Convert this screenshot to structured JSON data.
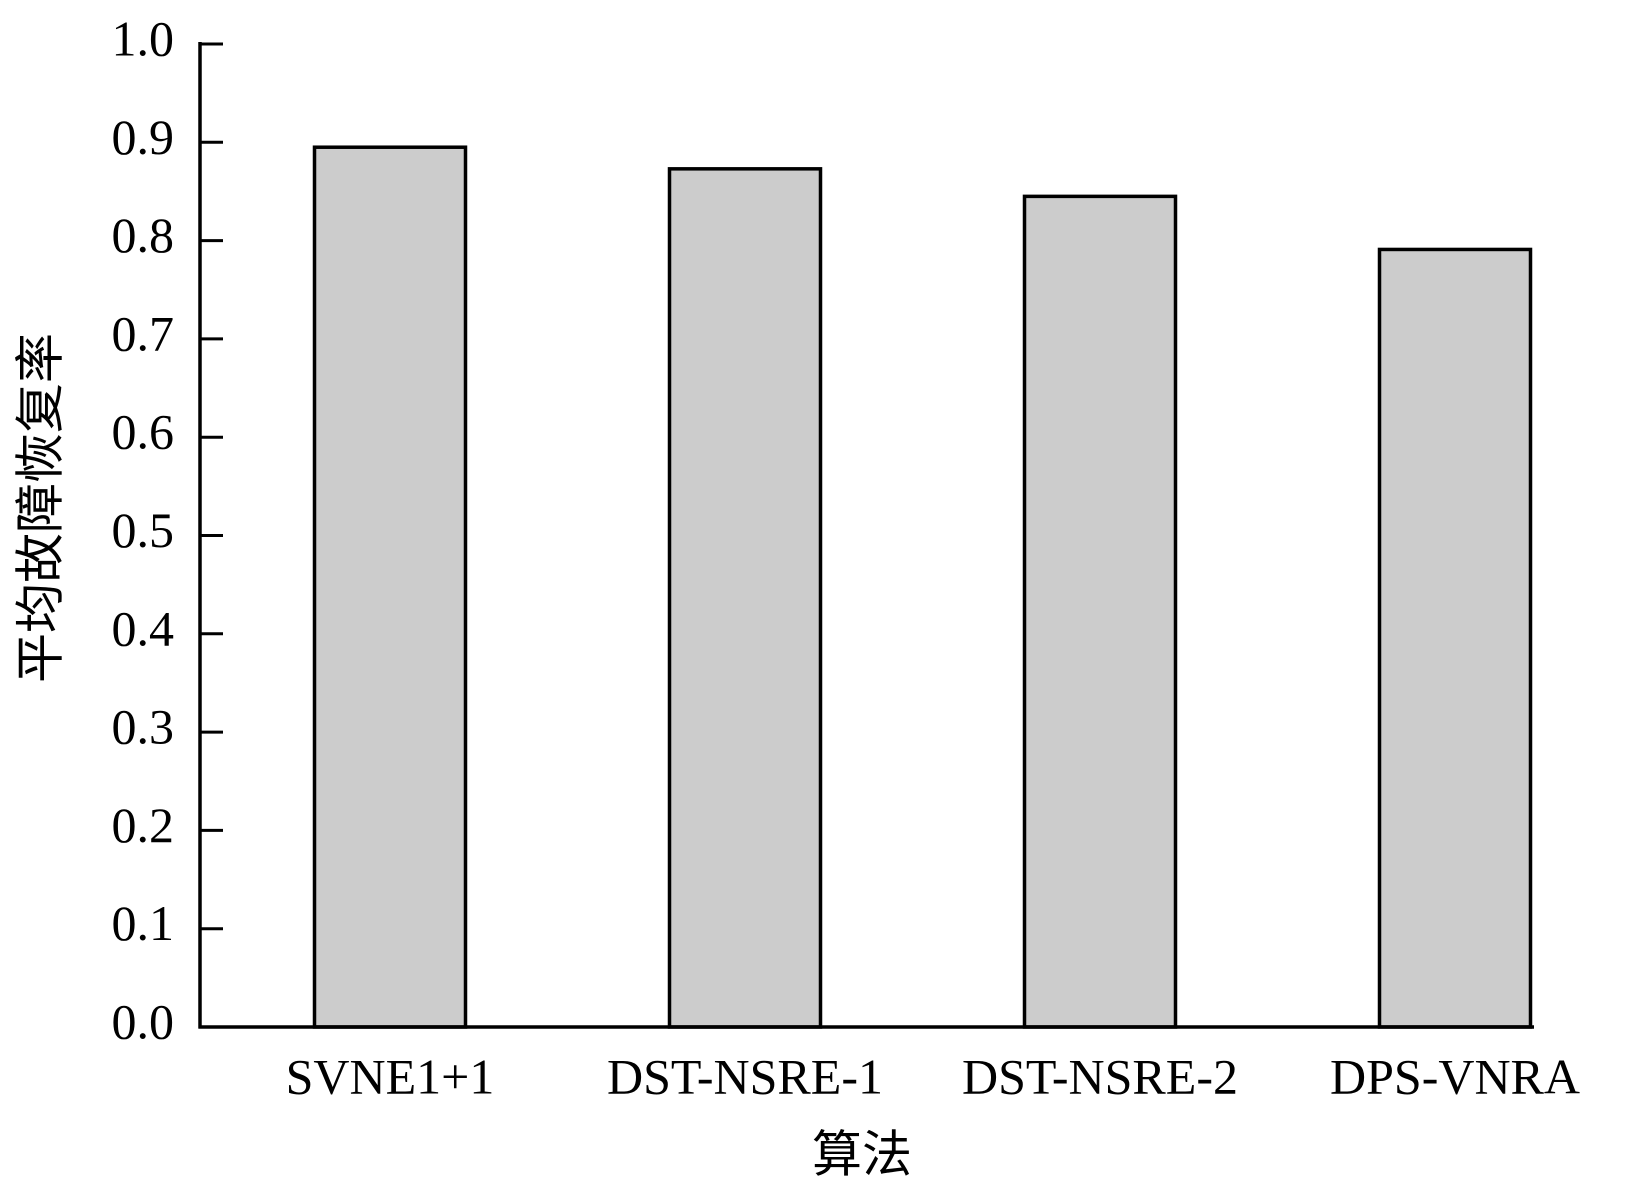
{
  "chart_data": {
    "type": "bar",
    "x_label": "算法",
    "y_label": "平均故障恢复率",
    "categories": [
      "SVNE1+1",
      "DST-NSRE-1",
      "DST-NSRE-2",
      "DPS-VNRA"
    ],
    "values": [
      0.895,
      0.873,
      0.845,
      0.791
    ],
    "color": "#cccccc",
    "ylim": [
      0,
      1
    ],
    "yticks": [
      {
        "value": 0,
        "label": "0.0"
      },
      0.1,
      0.2,
      0.3,
      0.4,
      0.5,
      0.6,
      0.7,
      0.8,
      0.9,
      {
        "value": 1,
        "label": "1.0"
      }
    ],
    "grid": false
  }
}
